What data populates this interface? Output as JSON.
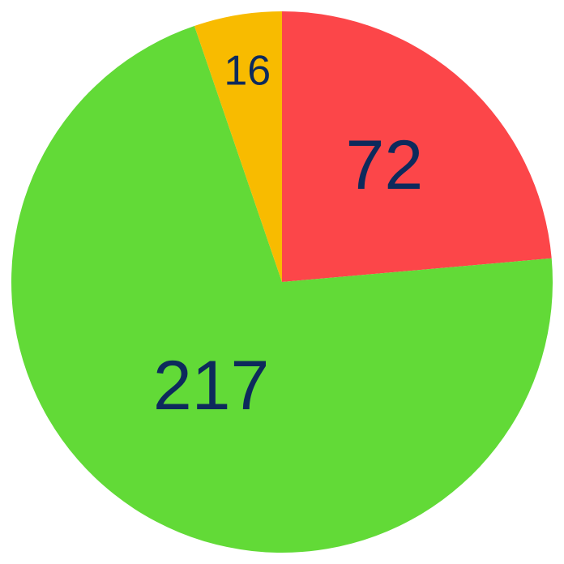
{
  "chart_data": {
    "type": "pie",
    "title": "",
    "start": "12 o'clock",
    "direction": "clockwise",
    "slices": [
      {
        "label": "72",
        "value": 72,
        "color": "#fc4649"
      },
      {
        "label": "217",
        "value": 217,
        "color": "#62da37"
      },
      {
        "label": "16",
        "value": 16,
        "color": "#f8bb00"
      }
    ],
    "label_color": "#0d2a5c",
    "legend": "none"
  }
}
